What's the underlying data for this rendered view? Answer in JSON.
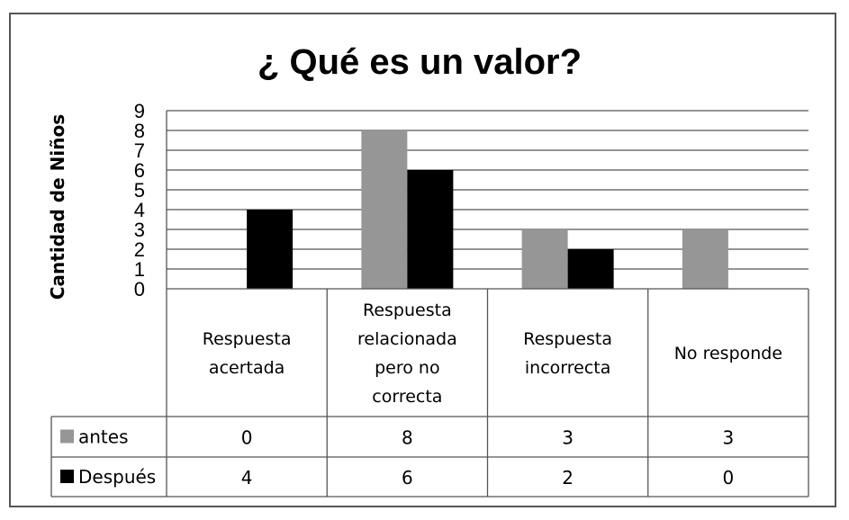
{
  "chart_data": {
    "type": "bar",
    "title": "¿ Qué es un valor?",
    "ylabel": "Cantidad de Niños",
    "xlabel": "",
    "ylim": [
      0,
      9
    ],
    "yticks": [
      "0",
      "1",
      "2",
      "3",
      "4",
      "5",
      "6",
      "7",
      "8",
      "9"
    ],
    "grid": true,
    "legend_placement": "data-table",
    "categories": [
      [
        "Respuesta",
        "acertada"
      ],
      [
        "Respuesta",
        "relacionada",
        "pero no",
        "correcta"
      ],
      [
        "Respuesta",
        "incorrecta"
      ],
      [
        "No responde"
      ]
    ],
    "series": [
      {
        "name": "antes",
        "color": "#969696",
        "values": [
          0,
          8,
          3,
          3
        ],
        "labels": [
          "0",
          "8",
          "3",
          "3"
        ]
      },
      {
        "name": "Después",
        "color": "#000000",
        "values": [
          4,
          6,
          2,
          0
        ],
        "labels": [
          "4",
          "6",
          "2",
          "0"
        ]
      }
    ]
  }
}
